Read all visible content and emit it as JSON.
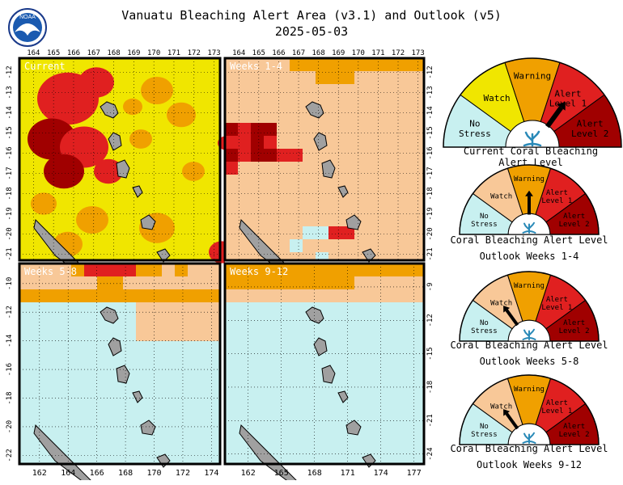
{
  "title": "Vanuatu Bleaching Alert Area (v3.1) and Outlook (v5)",
  "date": "2025-05-03",
  "logo_text": "NOAA",
  "colors": {
    "no_stress": "#c8f0f0",
    "watch": "#f0e600",
    "warning": "#f0a000",
    "alert1": "#e02020",
    "alert2": "#a00000",
    "outlook_watch": "#f8c898",
    "land": "#a0a0a0"
  },
  "maps": [
    {
      "label": "Current",
      "top_ticks": [
        "164",
        "165",
        "166",
        "167",
        "168",
        "169",
        "170",
        "171",
        "172",
        "173"
      ],
      "left_ticks": [
        "-12",
        "-13",
        "-14",
        "-15",
        "-16",
        "-17",
        "-18",
        "-19",
        "-20",
        "-21"
      ]
    },
    {
      "label": "Weeks 1-4",
      "top_ticks": [
        "164",
        "165",
        "166",
        "167",
        "168",
        "169",
        "170",
        "171",
        "172",
        "173"
      ],
      "right_ticks": [
        "-12",
        "-13",
        "-14",
        "-15",
        "-16",
        "-17",
        "-18",
        "-19",
        "-20",
        "-21"
      ]
    },
    {
      "label": "Weeks 5-8",
      "left_ticks": [
        "-10",
        "-12",
        "-14",
        "-16",
        "-18",
        "-20",
        "-22"
      ],
      "bottom_ticks": [
        "162",
        "164",
        "166",
        "168",
        "170",
        "172",
        "174"
      ]
    },
    {
      "label": "Weeks 9-12",
      "right_ticks": [
        "-9",
        "-12",
        "-15",
        "-18",
        "-21",
        "-24"
      ],
      "bottom_ticks": [
        "162",
        "165",
        "168",
        "171",
        "174",
        "177"
      ]
    }
  ],
  "gauges": [
    {
      "caption1": "Current Coral Bleaching Alert Level",
      "caption2": "",
      "level": "Alert Level 1"
    },
    {
      "caption1": "Coral Bleaching Alert Level",
      "caption2": "Outlook Weeks 1-4",
      "level": "Warning"
    },
    {
      "caption1": "Coral Bleaching Alert Level",
      "caption2": "Outlook Weeks 5-8",
      "level": "Watch"
    },
    {
      "caption1": "Coral Bleaching Alert Level",
      "caption2": "Outlook Weeks 9-12",
      "level": "Watch"
    }
  ],
  "gauge_labels": {
    "no_stress": [
      "No",
      "Stress"
    ],
    "watch": "Watch",
    "warning": "Warning",
    "alert1": [
      "Alert",
      "Level 1"
    ],
    "alert2": [
      "Alert",
      "Level 2"
    ]
  }
}
